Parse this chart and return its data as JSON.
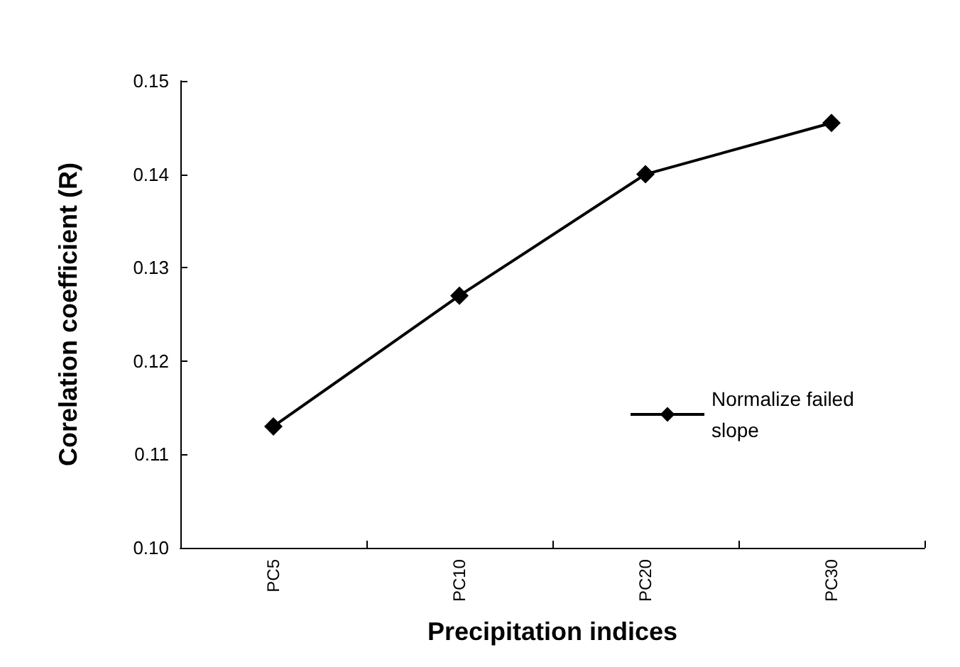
{
  "chart_data": {
    "type": "line",
    "xlabel": "Precipitation indices",
    "ylabel": "Corelation coefficient (R)",
    "categories": [
      "PC5",
      "PC10",
      "PC20",
      "PC30"
    ],
    "series": [
      {
        "name": "Normalize failed slope",
        "color": "#000000",
        "values": [
          0.113,
          0.127,
          0.14,
          0.1455
        ]
      }
    ],
    "ylim": [
      0.1,
      0.15
    ],
    "yticks": [
      {
        "value": 0.1,
        "label": "0.10"
      },
      {
        "value": 0.11,
        "label": "0.11"
      },
      {
        "value": 0.12,
        "label": "0.12"
      },
      {
        "value": 0.13,
        "label": "0.13"
      },
      {
        "value": 0.14,
        "label": "0.14"
      },
      {
        "value": 0.15,
        "label": "0.15"
      }
    ],
    "grid": false,
    "legend": "right",
    "marker": "diamond",
    "line_style": "solid"
  }
}
